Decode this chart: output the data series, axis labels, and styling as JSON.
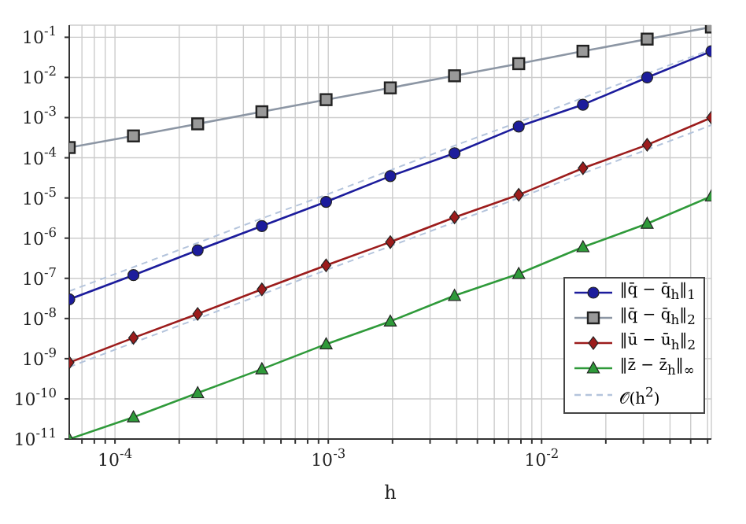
{
  "chart_data": {
    "type": "line",
    "xlabel": "h",
    "log": "xy",
    "grid": true,
    "legend": "bottom right",
    "xlim": [
      6.103515625e-05,
      0.0625
    ],
    "ylim": [
      1e-11,
      0.2
    ],
    "xticks": [
      {
        "value": 7e-05,
        "label": null
      },
      {
        "value": 8e-05,
        "label": null
      },
      {
        "value": 9e-05,
        "label": null
      },
      {
        "value": 0.0001,
        "label": "10$^{-4}$"
      },
      {
        "value": 0.0002,
        "label": null
      },
      {
        "value": 0.0003,
        "label": null
      },
      {
        "value": 0.0004,
        "label": null
      },
      {
        "value": 0.0005,
        "label": null
      },
      {
        "value": 0.0006,
        "label": null
      },
      {
        "value": 0.0007,
        "label": null
      },
      {
        "value": 0.0008,
        "label": null
      },
      {
        "value": 0.0009,
        "label": null
      },
      {
        "value": 0.001,
        "label": "10$^{-3}$"
      },
      {
        "value": 0.002,
        "label": null
      },
      {
        "value": 0.003,
        "label": null
      },
      {
        "value": 0.004,
        "label": null
      },
      {
        "value": 0.005,
        "label": null
      },
      {
        "value": 0.006,
        "label": null
      },
      {
        "value": 0.007,
        "label": null
      },
      {
        "value": 0.008,
        "label": null
      },
      {
        "value": 0.009,
        "label": null
      },
      {
        "value": 0.01,
        "label": "10$^{-2}$"
      },
      {
        "value": 0.02,
        "label": null
      },
      {
        "value": 0.03,
        "label": null
      },
      {
        "value": 0.04,
        "label": null
      },
      {
        "value": 0.05,
        "label": null
      },
      {
        "value": 0.06,
        "label": null
      }
    ],
    "yticks": [
      {
        "value": 1e-11,
        "label": "10$^{-11}$"
      },
      {
        "value": 1e-10,
        "label": "10$^{-10}$"
      },
      {
        "value": 1e-09,
        "label": "10$^{-9}$"
      },
      {
        "value": 1e-08,
        "label": "10$^{-8}$"
      },
      {
        "value": 1e-07,
        "label": "10$^{-7}$"
      },
      {
        "value": 1e-06,
        "label": "10$^{-6}$"
      },
      {
        "value": 1e-05,
        "label": "10$^{-5}$"
      },
      {
        "value": 0.0001,
        "label": "10$^{-4}$"
      },
      {
        "value": 0.001,
        "label": "10$^{-3}$"
      },
      {
        "value": 0.01,
        "label": "10$^{-2}$"
      },
      {
        "value": 0.1,
        "label": "10$^{-1}$"
      }
    ],
    "x": [
      6.103515625e-05,
      0.0001220703125,
      0.000244140625,
      0.00048828125,
      0.0009765625,
      0.001953125,
      0.00390625,
      0.0078125,
      0.015625,
      0.03125,
      0.0625
    ],
    "series": [
      {
        "name": "‖q̄ − q̄$_{h}$‖$_{1}$",
        "color": "#1c1c9c",
        "marker": "circle",
        "values": [
          3e-08,
          1.2e-07,
          5e-07,
          2e-06,
          8e-06,
          3.5e-05,
          0.00013,
          0.0006,
          0.0021,
          0.01,
          0.045
        ]
      },
      {
        "name": "‖q̄ − q̄$_{h}$‖$_{2}$",
        "color": "#8c96a4",
        "marker": "square",
        "values": [
          0.00018,
          0.00035,
          0.0007,
          0.0014,
          0.0028,
          0.0055,
          0.011,
          0.022,
          0.045,
          0.09,
          0.18
        ]
      },
      {
        "name": "‖ū − ū$_{h}$‖$_{2}$",
        "color": "#9c1c1c",
        "marker": "diamond",
        "values": [
          8e-10,
          3.3e-09,
          1.3e-08,
          5.3e-08,
          2.1e-07,
          8e-07,
          3.3e-06,
          1.2e-05,
          5.5e-05,
          0.00021,
          0.001
        ]
      },
      {
        "name": "‖z̄ − z̄$_{h}$‖$_{∞}$",
        "color": "#2f9a3a",
        "marker": "triangle",
        "values": [
          1e-11,
          3.5e-11,
          1.4e-10,
          5.5e-10,
          2.3e-09,
          8.5e-09,
          3.7e-08,
          1.3e-07,
          6e-07,
          2.3e-06,
          1.1e-05
        ]
      },
      {
        "name": "𝒪(h$^{2}$)",
        "color": "#b4c4dc",
        "marker": "none",
        "line_style": "dashed",
        "values": [
          4.8e-08,
          1.9e-07,
          7.6e-07,
          3.1e-06,
          1.2e-05,
          4.9e-05,
          0.0002,
          0.00078,
          0.0031,
          0.0125,
          0.05
        ]
      },
      {
        "color": "#b4c4dc",
        "marker": "none",
        "line_style": "dashed",
        "values": [
          6.2e-10,
          2.5e-09,
          9.9e-09,
          4e-08,
          1.6e-07,
          6.3e-07,
          2.5e-06,
          1e-05,
          4.1e-05,
          0.00016,
          0.00065
        ]
      }
    ]
  }
}
